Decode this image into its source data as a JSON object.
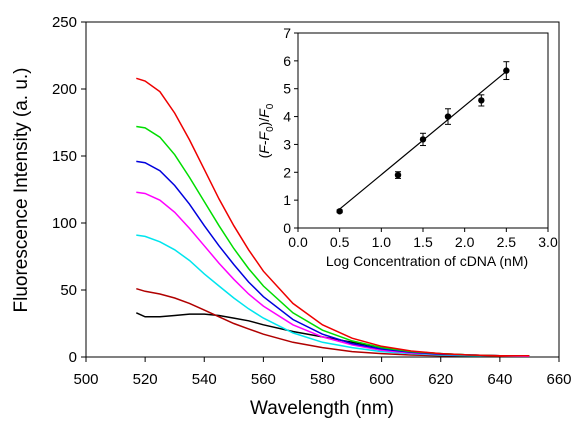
{
  "chart_data": [
    {
      "type": "line",
      "title": "",
      "xlabel": "Wavelength (nm)",
      "ylabel": "Fluorescence Intensity (a. u.)",
      "xlim": [
        500,
        660
      ],
      "ylim": [
        0,
        250
      ],
      "xticks": [
        "500",
        "520",
        "540",
        "560",
        "580",
        "600",
        "620",
        "640",
        "660"
      ],
      "yticks": [
        "0",
        "50",
        "100",
        "150",
        "200",
        "250"
      ],
      "grid": false,
      "legend": "none",
      "series": [
        {
          "color": "#000000",
          "x": [
            517,
            520,
            525,
            530,
            535,
            540,
            545,
            550,
            555,
            560,
            570,
            580,
            590,
            600,
            610,
            620,
            630,
            640,
            650
          ],
          "y": [
            33,
            30,
            30,
            31,
            32,
            32,
            31,
            29,
            27,
            24,
            19,
            15,
            11,
            7,
            4,
            2.5,
            1.5,
            1,
            1
          ]
        },
        {
          "color": "#b00000",
          "x": [
            517,
            520,
            525,
            530,
            535,
            540,
            545,
            550,
            555,
            560,
            570,
            580,
            590,
            600,
            610,
            620,
            630,
            640,
            650
          ],
          "y": [
            51,
            49,
            47,
            44,
            40,
            35,
            30,
            25,
            21,
            17,
            11,
            7,
            4,
            2.5,
            1.5,
            1,
            1,
            0.5,
            0.5
          ]
        },
        {
          "color": "#00e5ee",
          "x": [
            517,
            520,
            525,
            530,
            535,
            540,
            545,
            550,
            555,
            560,
            570,
            580,
            590,
            600,
            610,
            620,
            630,
            640,
            650
          ],
          "y": [
            91,
            90,
            86,
            80,
            72,
            62,
            53,
            44,
            36,
            29,
            18,
            11,
            7,
            4,
            2.5,
            1.5,
            1,
            1,
            0.5
          ]
        },
        {
          "color": "#ff00ff",
          "x": [
            517,
            520,
            525,
            530,
            535,
            540,
            545,
            550,
            555,
            560,
            570,
            580,
            590,
            600,
            610,
            620,
            630,
            640,
            650
          ],
          "y": [
            123,
            122,
            117,
            108,
            96,
            83,
            70,
            58,
            47,
            38,
            24,
            15,
            9,
            5,
            3,
            2,
            1.5,
            1,
            0.5
          ]
        },
        {
          "color": "#0000dd",
          "x": [
            517,
            520,
            525,
            530,
            535,
            540,
            545,
            550,
            555,
            560,
            570,
            580,
            590,
            600,
            610,
            620,
            630,
            640,
            650
          ],
          "y": [
            146,
            145,
            139,
            128,
            114,
            98,
            83,
            69,
            56,
            45,
            28,
            17,
            10,
            6,
            3.5,
            2,
            1.5,
            1,
            1
          ]
        },
        {
          "color": "#00dd00",
          "x": [
            517,
            520,
            525,
            530,
            535,
            540,
            545,
            550,
            555,
            560,
            570,
            580,
            590,
            600,
            610,
            620,
            630,
            640,
            650
          ],
          "y": [
            172,
            171,
            164,
            151,
            134,
            116,
            98,
            81,
            66,
            53,
            33,
            20,
            12,
            7,
            4,
            2.5,
            1.5,
            1,
            1
          ]
        },
        {
          "color": "#ee0000",
          "x": [
            517,
            520,
            525,
            530,
            535,
            540,
            545,
            550,
            555,
            560,
            570,
            580,
            590,
            600,
            610,
            620,
            630,
            640,
            650
          ],
          "y": [
            208,
            206,
            198,
            182,
            162,
            140,
            118,
            98,
            80,
            64,
            40,
            24,
            14,
            8,
            4.5,
            2.5,
            1.5,
            1,
            1
          ]
        }
      ]
    },
    {
      "type": "scatter",
      "title": "",
      "xlabel": "Log Concentration of cDNA (nM)",
      "ylabel_parts": [
        "(",
        "F",
        "-",
        "F",
        "0",
        ")/",
        "F",
        "0"
      ],
      "xlim": [
        0,
        3
      ],
      "ylim": [
        0,
        7
      ],
      "xticks": [
        "0.0",
        "0.5",
        "1.0",
        "1.5",
        "2.0",
        "2.5",
        "3.0"
      ],
      "yticks": [
        "0",
        "1",
        "2",
        "3",
        "4",
        "5",
        "6",
        "7"
      ],
      "grid": false,
      "points": [
        {
          "x": 0.5,
          "y": 0.6,
          "err": 0.05
        },
        {
          "x": 1.2,
          "y": 1.9,
          "err": 0.12
        },
        {
          "x": 1.5,
          "y": 3.18,
          "err": 0.22
        },
        {
          "x": 1.8,
          "y": 4.0,
          "err": 0.28
        },
        {
          "x": 2.2,
          "y": 4.58,
          "err": 0.2
        },
        {
          "x": 2.5,
          "y": 5.65,
          "err": 0.32
        }
      ],
      "fit_line": {
        "x": [
          0.5,
          2.5
        ],
        "y": [
          0.68,
          5.62
        ]
      }
    }
  ]
}
